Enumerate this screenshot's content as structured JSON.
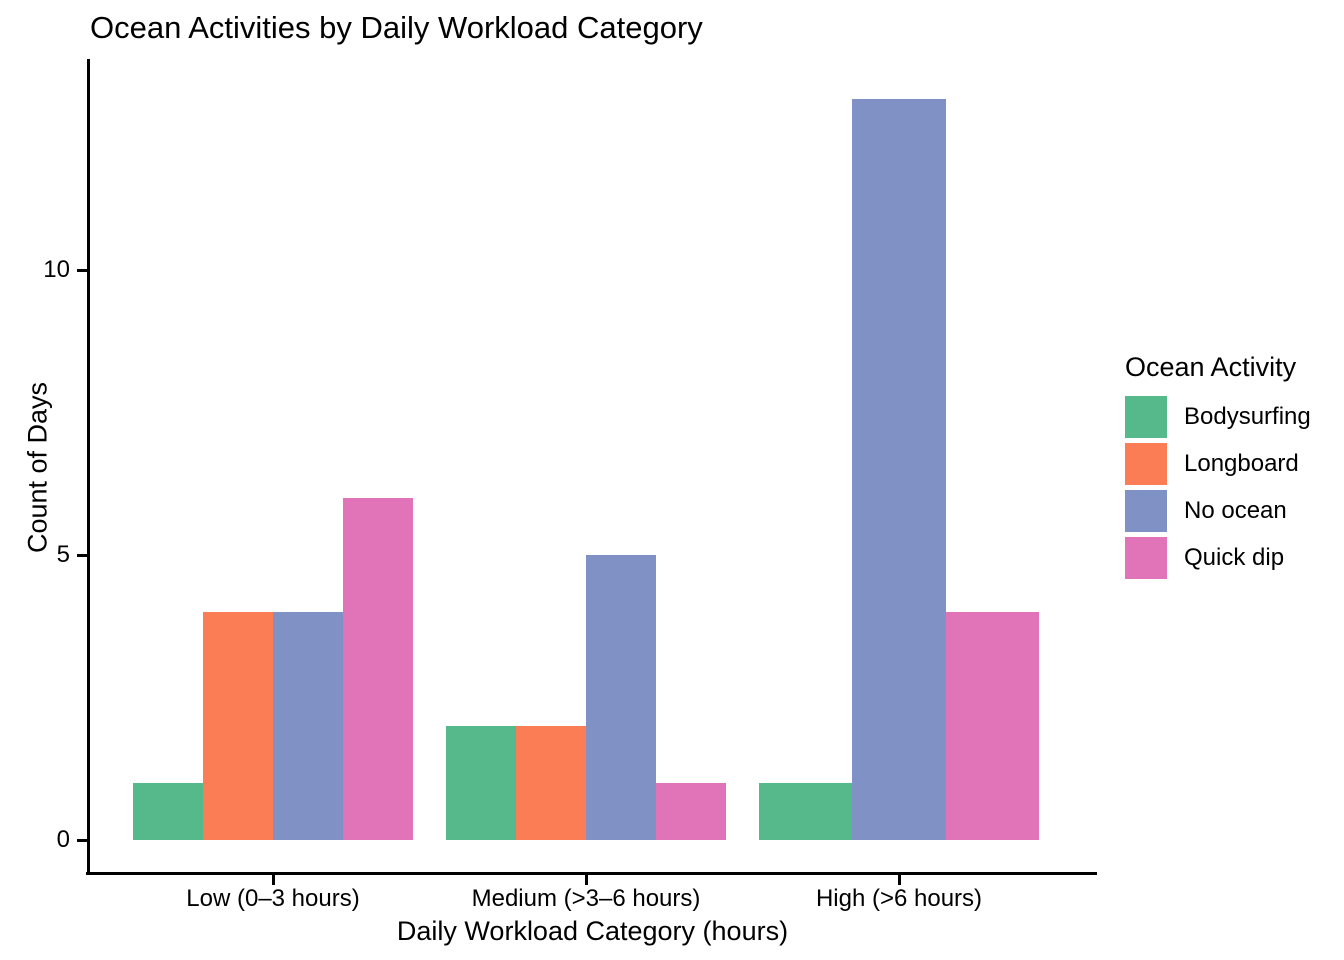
{
  "chart_data": {
    "type": "grouped_bar",
    "title": "Ocean Activities by Daily Workload Category",
    "xlabel": "Daily Workload Category (hours)",
    "ylabel": "Count of Days",
    "categories": [
      "Low (0–3 hours)",
      "Medium (>3–6 hours)",
      "High (>6 hours)"
    ],
    "series": [
      {
        "name": "Bodysurfing",
        "color": "#55b98c",
        "values": [
          1,
          2,
          1
        ]
      },
      {
        "name": "Longboard",
        "color": "#fa7d55",
        "values": [
          4,
          2,
          null
        ]
      },
      {
        "name": "No ocean",
        "color": "#8091c6",
        "values": [
          4,
          5,
          13
        ]
      },
      {
        "name": "Quick dip",
        "color": "#e173b9",
        "values": [
          6,
          1,
          4
        ]
      }
    ],
    "yticks": [
      0,
      5,
      10
    ],
    "ytick_labels": [
      "0",
      "5",
      "10"
    ],
    "ylim": [
      0,
      13.7
    ],
    "grid": "off",
    "background": "#ffffff",
    "axis_color": "#000000",
    "legend": {
      "title": "Ocean Activity",
      "position": "right",
      "entries": [
        "Bodysurfing",
        "Longboard",
        "No ocean",
        "Quick dip"
      ]
    }
  }
}
